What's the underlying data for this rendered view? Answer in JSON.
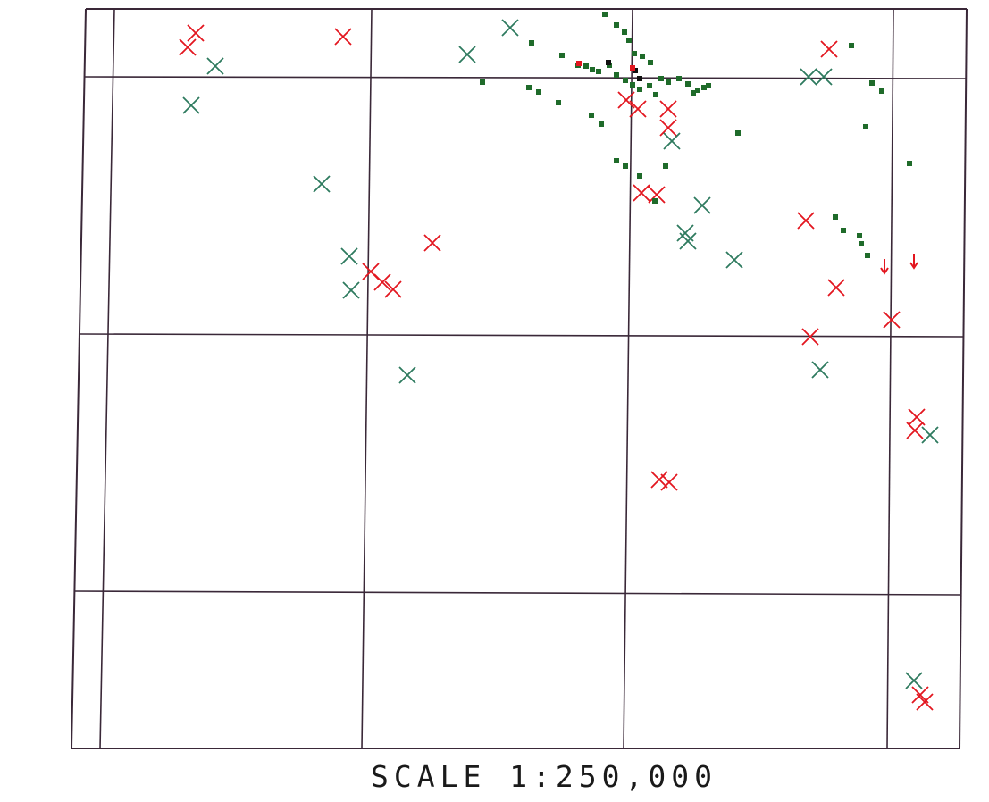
{
  "map": {
    "scale_label": "SCALE 1:250,000",
    "colors": {
      "grid": "#3a2838",
      "red_mark": "#e3161f",
      "green_mark": "#2e7a5e",
      "green_dot": "#1f6b2a",
      "black_mark": "#101010"
    }
  },
  "chart_data": {
    "type": "scatter",
    "title": "",
    "xlabel": "",
    "ylabel": "",
    "grid": true,
    "series": [
      {
        "values": [
          [
            219,
            37
          ],
          [
            210,
            53
          ],
          [
            384,
            41
          ],
          [
            484,
            272
          ],
          [
            415,
            304
          ],
          [
            428,
            316
          ],
          [
            440,
            324
          ],
          [
            701,
            112
          ],
          [
            714,
            122
          ],
          [
            748,
            122
          ],
          [
            748,
            143
          ],
          [
            718,
            216
          ],
          [
            735,
            218
          ],
          [
            738,
            537
          ],
          [
            749,
            540
          ],
          [
            902,
            247
          ],
          [
            936,
            322
          ],
          [
            928,
            55
          ],
          [
            907,
            377
          ],
          [
            998,
            358
          ],
          [
            1026,
            467
          ],
          [
            1024,
            482
          ],
          [
            1030,
            778
          ],
          [
            1035,
            786
          ]
        ]
      },
      {
        "values": [
          [
            214,
            118
          ],
          [
            241,
            74
          ],
          [
            360,
            206
          ],
          [
            391,
            287
          ],
          [
            393,
            325
          ],
          [
            456,
            420
          ],
          [
            523,
            61
          ],
          [
            571,
            31
          ],
          [
            752,
            158
          ],
          [
            786,
            230
          ],
          [
            767,
            261
          ],
          [
            770,
            270
          ],
          [
            822,
            291
          ],
          [
            905,
            86
          ],
          [
            922,
            86
          ],
          [
            918,
            414
          ],
          [
            1041,
            487
          ],
          [
            1023,
            762
          ]
        ]
      },
      {
        "values": [
          [
            677,
            16
          ],
          [
            690,
            28
          ],
          [
            699,
            36
          ],
          [
            704,
            45
          ],
          [
            710,
            60
          ],
          [
            719,
            63
          ],
          [
            728,
            70
          ],
          [
            595,
            48
          ],
          [
            629,
            62
          ],
          [
            647,
            73
          ],
          [
            656,
            74
          ],
          [
            663,
            78
          ],
          [
            670,
            80
          ],
          [
            682,
            73
          ],
          [
            690,
            84
          ],
          [
            700,
            90
          ],
          [
            708,
            95
          ],
          [
            716,
            100
          ],
          [
            727,
            96
          ],
          [
            734,
            106
          ],
          [
            740,
            88
          ],
          [
            748,
            92
          ],
          [
            760,
            88
          ],
          [
            770,
            94
          ],
          [
            776,
            104
          ],
          [
            781,
            101
          ],
          [
            788,
            98
          ],
          [
            793,
            96
          ],
          [
            826,
            149
          ],
          [
            540,
            92
          ],
          [
            592,
            98
          ],
          [
            603,
            103
          ],
          [
            625,
            115
          ],
          [
            662,
            129
          ],
          [
            673,
            139
          ],
          [
            690,
            180
          ],
          [
            700,
            186
          ],
          [
            745,
            186
          ],
          [
            716,
            197
          ],
          [
            733,
            225
          ],
          [
            953,
            51
          ],
          [
            976,
            93
          ],
          [
            987,
            102
          ],
          [
            969,
            142
          ],
          [
            1018,
            183
          ],
          [
            935,
            243
          ],
          [
            944,
            258
          ],
          [
            962,
            264
          ],
          [
            964,
            273
          ],
          [
            971,
            286
          ]
        ]
      },
      {
        "values": [
          [
            681,
            70
          ],
          [
            711,
            79
          ],
          [
            716,
            88
          ]
        ]
      },
      {
        "values": [
          [
            648,
            71
          ],
          [
            708,
            76
          ]
        ]
      },
      {
        "values": [
          [
            990,
            300
          ],
          [
            1023,
            294
          ]
        ]
      }
    ]
  }
}
